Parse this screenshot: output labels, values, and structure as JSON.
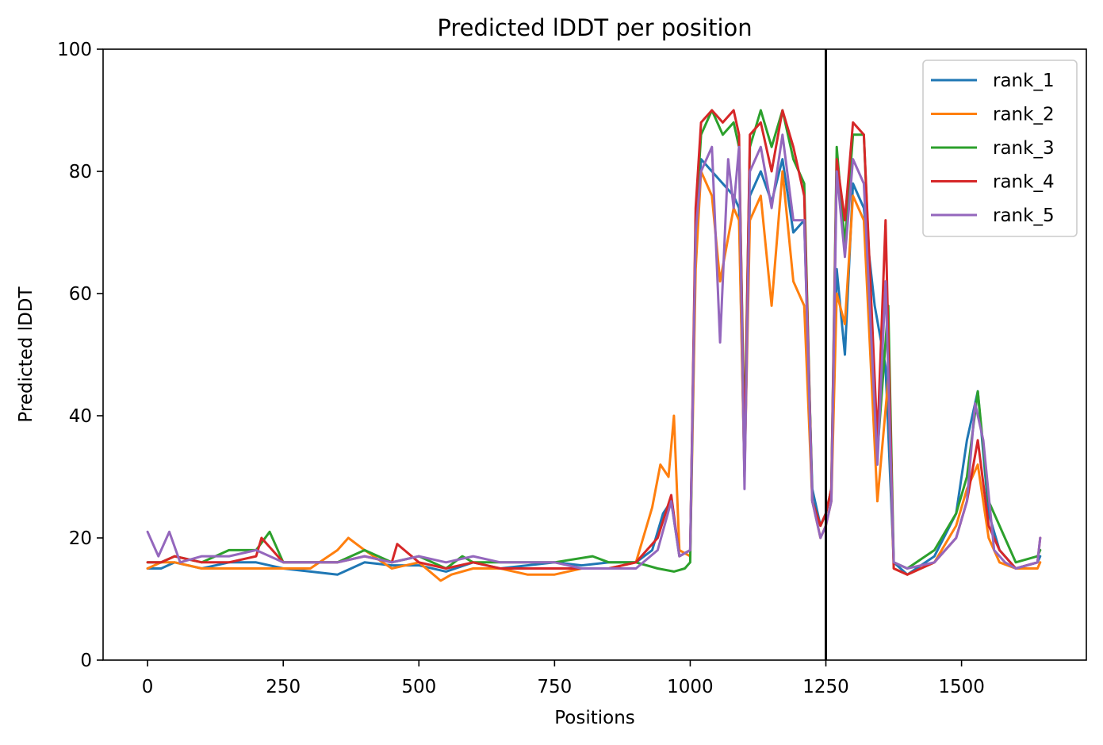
{
  "chart_data": {
    "type": "line",
    "title": "Predicted lDDT per position",
    "xlabel": "Positions",
    "ylabel": "Predicted lDDT",
    "xlim": [
      -82,
      1730
    ],
    "ylim": [
      0,
      100
    ],
    "x_ticks": [
      0,
      250,
      500,
      750,
      1000,
      1250,
      1500
    ],
    "y_ticks": [
      0,
      20,
      40,
      60,
      80,
      100
    ],
    "grid": false,
    "legend_position": "top-right",
    "vline": {
      "x": 1250,
      "color": "#000000"
    },
    "series": [
      {
        "name": "rank_1",
        "color": "#1f77b4",
        "x": [
          0,
          25,
          50,
          100,
          150,
          200,
          250,
          300,
          350,
          400,
          450,
          500,
          550,
          600,
          650,
          700,
          750,
          800,
          850,
          900,
          930,
          950,
          965,
          980,
          1000,
          1010,
          1020,
          1040,
          1060,
          1080,
          1090,
          1100,
          1110,
          1130,
          1150,
          1170,
          1190,
          1210,
          1225,
          1240,
          1250,
          1260,
          1270,
          1285,
          1300,
          1320,
          1340,
          1360,
          1375,
          1400,
          1450,
          1490,
          1510,
          1530,
          1550,
          1570,
          1600,
          1640,
          1645
        ],
        "y": [
          15,
          15,
          16,
          15,
          16,
          16,
          15,
          14.5,
          14,
          16,
          15.5,
          15.5,
          14.5,
          16,
          15,
          15.5,
          16,
          15.5,
          16,
          16,
          18,
          24,
          26,
          17,
          18,
          70,
          82,
          80,
          78,
          76,
          74,
          30,
          76,
          80,
          75,
          82,
          70,
          72,
          28,
          22,
          24,
          28,
          64,
          50,
          78,
          74,
          58,
          48,
          16,
          14,
          17,
          24,
          36,
          44,
          24,
          18,
          15,
          16,
          17
        ]
      },
      {
        "name": "rank_2",
        "color": "#ff7f0e",
        "x": [
          0,
          25,
          50,
          100,
          150,
          200,
          250,
          300,
          350,
          370,
          400,
          450,
          500,
          540,
          560,
          600,
          650,
          700,
          750,
          800,
          850,
          900,
          930,
          945,
          960,
          970,
          980,
          1000,
          1010,
          1020,
          1040,
          1055,
          1080,
          1090,
          1100,
          1110,
          1130,
          1150,
          1170,
          1190,
          1210,
          1225,
          1240,
          1250,
          1260,
          1270,
          1285,
          1300,
          1320,
          1345,
          1365,
          1375,
          1400,
          1450,
          1490,
          1510,
          1530,
          1550,
          1570,
          1600,
          1640,
          1645
        ],
        "y": [
          15,
          16,
          16,
          15,
          15,
          15,
          15,
          15,
          18,
          20,
          18,
          15,
          16,
          13,
          14,
          15,
          15,
          14,
          14,
          15,
          15,
          16,
          25,
          32,
          30,
          40,
          18,
          17,
          64,
          80,
          76,
          62,
          74,
          72,
          30,
          72,
          76,
          58,
          80,
          62,
          58,
          26,
          20,
          22,
          26,
          60,
          55,
          76,
          72,
          26,
          46,
          15,
          14,
          16,
          22,
          28,
          32,
          20,
          16,
          15,
          15,
          16
        ]
      },
      {
        "name": "rank_3",
        "color": "#2ca02c",
        "x": [
          0,
          25,
          50,
          100,
          150,
          200,
          225,
          250,
          300,
          350,
          400,
          450,
          500,
          550,
          580,
          600,
          650,
          700,
          750,
          820,
          850,
          900,
          940,
          970,
          990,
          1000,
          1010,
          1020,
          1040,
          1060,
          1080,
          1090,
          1100,
          1110,
          1130,
          1150,
          1170,
          1190,
          1210,
          1225,
          1240,
          1250,
          1260,
          1270,
          1285,
          1300,
          1320,
          1345,
          1365,
          1375,
          1400,
          1450,
          1490,
          1510,
          1530,
          1550,
          1570,
          1600,
          1640,
          1645
        ],
        "y": [
          16,
          16,
          17,
          16,
          18,
          18,
          21,
          16,
          16,
          16,
          18,
          16,
          17,
          15,
          17,
          16,
          16,
          16,
          16,
          17,
          16,
          16,
          15,
          14.5,
          15,
          16,
          72,
          86,
          90,
          86,
          88,
          84,
          36,
          84,
          90,
          84,
          90,
          82,
          78,
          26,
          22,
          24,
          28,
          84,
          68,
          86,
          86,
          34,
          58,
          16,
          15,
          18,
          24,
          30,
          44,
          26,
          22,
          16,
          17,
          18
        ]
      },
      {
        "name": "rank_4",
        "color": "#d62728",
        "x": [
          0,
          25,
          50,
          100,
          150,
          200,
          210,
          250,
          300,
          350,
          400,
          450,
          460,
          500,
          550,
          600,
          650,
          700,
          750,
          800,
          850,
          900,
          940,
          965,
          980,
          1000,
          1010,
          1020,
          1040,
          1060,
          1080,
          1090,
          1100,
          1110,
          1130,
          1150,
          1170,
          1190,
          1210,
          1225,
          1240,
          1250,
          1260,
          1270,
          1285,
          1300,
          1320,
          1345,
          1360,
          1375,
          1400,
          1450,
          1490,
          1510,
          1530,
          1550,
          1570,
          1600,
          1640,
          1645
        ],
        "y": [
          16,
          16,
          17,
          16,
          16,
          17,
          20,
          16,
          16,
          16,
          17,
          16,
          19,
          16,
          15,
          16,
          15,
          15,
          15,
          15,
          15,
          16,
          20,
          27,
          17,
          18,
          74,
          88,
          90,
          88,
          90,
          86,
          32,
          86,
          88,
          80,
          90,
          84,
          76,
          26,
          22,
          24,
          28,
          82,
          72,
          88,
          86,
          36,
          72,
          15,
          14,
          16,
          20,
          26,
          36,
          22,
          18,
          15,
          16,
          20
        ]
      },
      {
        "name": "rank_5",
        "color": "#9467bd",
        "x": [
          0,
          20,
          40,
          60,
          100,
          150,
          200,
          250,
          300,
          350,
          400,
          450,
          500,
          550,
          600,
          650,
          700,
          750,
          800,
          850,
          900,
          940,
          965,
          980,
          1000,
          1010,
          1020,
          1040,
          1055,
          1070,
          1080,
          1090,
          1100,
          1110,
          1130,
          1150,
          1170,
          1190,
          1210,
          1225,
          1240,
          1250,
          1260,
          1270,
          1285,
          1300,
          1320,
          1345,
          1360,
          1375,
          1400,
          1450,
          1490,
          1510,
          1525,
          1540,
          1560,
          1580,
          1600,
          1640,
          1645
        ],
        "y": [
          21,
          17,
          21,
          16,
          17,
          17,
          18,
          16,
          16,
          16,
          17,
          16,
          17,
          16,
          17,
          16,
          16,
          16,
          15,
          15,
          15,
          18,
          26,
          17,
          18,
          70,
          80,
          84,
          52,
          82,
          74,
          84,
          28,
          80,
          84,
          74,
          86,
          72,
          72,
          26,
          20,
          22,
          26,
          80,
          66,
          82,
          78,
          32,
          62,
          16,
          15,
          16,
          20,
          26,
          42,
          36,
          18,
          16,
          15,
          16,
          20
        ]
      }
    ]
  }
}
